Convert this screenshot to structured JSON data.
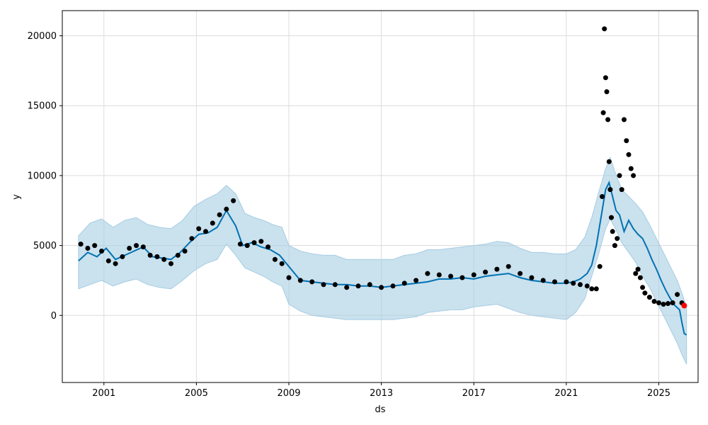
{
  "chart_data": {
    "type": "scatter",
    "title": "",
    "xlabel": "ds",
    "ylabel": "y",
    "xlim": [
      1999.2,
      2026.7
    ],
    "ylim": [
      -4800,
      21800
    ],
    "grid": true,
    "x_ticks": [
      "2001",
      "2005",
      "2009",
      "2013",
      "2017",
      "2021",
      "2025"
    ],
    "y_ticks": [
      "0",
      "5000",
      "10000",
      "15000",
      "20000"
    ],
    "colors": {
      "observed": "#000000",
      "forecast": "#0072b2",
      "interval": "#a6cde3",
      "highlight": "#ff0000",
      "grid": "#dcdcdc"
    },
    "series": [
      {
        "role": "observed",
        "x": [
          2000.0,
          2000.3,
          2000.6,
          2000.9,
          2001.2,
          2001.5,
          2001.8,
          2002.1,
          2002.4,
          2002.7,
          2003.0,
          2003.3,
          2003.6,
          2003.9,
          2004.2,
          2004.5,
          2004.8,
          2005.1,
          2005.4,
          2005.7,
          2006.0,
          2006.3,
          2006.6,
          2006.9,
          2007.2,
          2007.5,
          2007.8,
          2008.1,
          2008.4,
          2008.7,
          2009.0,
          2009.5,
          2010.0,
          2010.5,
          2011.0,
          2011.5,
          2012.0,
          2012.5,
          2013.0,
          2013.5,
          2014.0,
          2014.5,
          2015.0,
          2015.5,
          2016.0,
          2016.5,
          2017.0,
          2017.5,
          2018.0,
          2018.5,
          2019.0,
          2019.5,
          2020.0,
          2020.5,
          2021.0,
          2021.3,
          2021.6,
          2021.9,
          2022.1,
          2022.3,
          2022.45,
          2022.55,
          2022.6,
          2022.65,
          2022.7,
          2022.75,
          2022.8,
          2022.85,
          2022.9,
          2022.95,
          2023.0,
          2023.1,
          2023.2,
          2023.3,
          2023.4,
          2023.5,
          2023.6,
          2023.7,
          2023.8,
          2023.9,
          2024.0,
          2024.1,
          2024.2,
          2024.3,
          2024.4,
          2024.6,
          2024.8,
          2025.0,
          2025.2,
          2025.4,
          2025.6,
          2025.8,
          2026.0
        ],
        "values": [
          5100,
          4800,
          5000,
          4600,
          3900,
          3700,
          4200,
          4800,
          5000,
          4900,
          4300,
          4200,
          4000,
          3700,
          4300,
          4600,
          5500,
          6200,
          6000,
          6600,
          7200,
          7600,
          8200,
          5100,
          5000,
          5200,
          5300,
          4900,
          4000,
          3700,
          2700,
          2500,
          2400,
          2200,
          2200,
          2000,
          2100,
          2200,
          2000,
          2100,
          2300,
          2500,
          3000,
          2900,
          2800,
          2700,
          2900,
          3100,
          3300,
          3500,
          3000,
          2700,
          2500,
          2400,
          2400,
          2300,
          2200,
          2100,
          1900,
          1900,
          3500,
          8500,
          14500,
          20500,
          17000,
          16000,
          14000,
          11000,
          9000,
          7000,
          6000,
          5000,
          5500,
          10000,
          9000,
          14000,
          12500,
          11500,
          10500,
          10000,
          3000,
          3300,
          2700,
          2000,
          1600,
          1300,
          1000,
          900,
          800,
          850,
          900,
          1500,
          900
        ]
      },
      {
        "role": "forecast",
        "x": [
          1999.9,
          2000.3,
          2000.7,
          2001.1,
          2001.5,
          2001.9,
          2002.3,
          2002.7,
          2003.1,
          2003.5,
          2003.9,
          2004.3,
          2004.7,
          2005.1,
          2005.5,
          2005.9,
          2006.3,
          2006.7,
          2007.0,
          2007.4,
          2007.8,
          2008.2,
          2008.6,
          2009.0,
          2009.5,
          2010.0,
          2010.5,
          2011.0,
          2011.5,
          2012.0,
          2012.5,
          2013.0,
          2013.5,
          2014.0,
          2014.5,
          2015.0,
          2015.5,
          2016.0,
          2016.5,
          2017.0,
          2017.5,
          2018.0,
          2018.5,
          2019.0,
          2019.5,
          2020.0,
          2020.5,
          2021.0,
          2021.3,
          2021.6,
          2021.9,
          2022.1,
          2022.3,
          2022.5,
          2022.7,
          2022.85,
          2023.0,
          2023.15,
          2023.3,
          2023.5,
          2023.7,
          2023.9,
          2024.1,
          2024.3,
          2024.5,
          2024.7,
          2024.9,
          2025.1,
          2025.3,
          2025.5,
          2025.7,
          2025.9,
          2026.0,
          2026.1,
          2026.2
        ],
        "values": [
          3900,
          4500,
          4200,
          4800,
          4000,
          4300,
          4600,
          4900,
          4200,
          4100,
          4000,
          4500,
          5200,
          5800,
          5900,
          6300,
          7500,
          6400,
          5000,
          5200,
          4900,
          4700,
          4300,
          3500,
          2500,
          2400,
          2300,
          2200,
          2200,
          2100,
          2100,
          2000,
          2100,
          2200,
          2300,
          2400,
          2600,
          2600,
          2700,
          2600,
          2800,
          2900,
          3000,
          2700,
          2500,
          2400,
          2300,
          2300,
          2400,
          2600,
          3000,
          3600,
          5000,
          7000,
          9000,
          9500,
          8500,
          7500,
          7200,
          6000,
          6800,
          6200,
          5800,
          5500,
          4800,
          4000,
          3300,
          2500,
          1800,
          1200,
          700,
          400,
          -500,
          -1300,
          -1400
        ]
      }
    ],
    "uncertainty_band": {
      "x": [
        1999.9,
        2000.4,
        2000.9,
        2001.4,
        2001.9,
        2002.4,
        2002.9,
        2003.4,
        2003.9,
        2004.4,
        2004.9,
        2005.4,
        2005.9,
        2006.3,
        2006.7,
        2007.1,
        2007.5,
        2007.9,
        2008.3,
        2008.7,
        2009.0,
        2009.5,
        2010.0,
        2010.5,
        2011.0,
        2011.5,
        2012.0,
        2012.5,
        2013.0,
        2013.5,
        2014.0,
        2014.5,
        2015.0,
        2015.5,
        2016.0,
        2016.5,
        2017.0,
        2017.5,
        2018.0,
        2018.5,
        2019.0,
        2019.5,
        2020.0,
        2020.5,
        2021.0,
        2021.4,
        2021.8,
        2022.1,
        2022.4,
        2022.7,
        2022.9,
        2023.1,
        2023.4,
        2023.7,
        2024.0,
        2024.3,
        2024.6,
        2024.9,
        2025.2,
        2025.5,
        2025.8,
        2026.0,
        2026.2
      ],
      "upper": [
        5700,
        6600,
        6900,
        6300,
        6800,
        7000,
        6500,
        6300,
        6200,
        6800,
        7800,
        8300,
        8700,
        9300,
        8700,
        7300,
        7000,
        6800,
        6500,
        6300,
        5000,
        4600,
        4400,
        4300,
        4300,
        4000,
        4000,
        4000,
        4000,
        4000,
        4300,
        4400,
        4700,
        4700,
        4800,
        4900,
        5000,
        5100,
        5300,
        5200,
        4800,
        4500,
        4500,
        4400,
        4400,
        4700,
        5600,
        7000,
        8800,
        10500,
        11300,
        10300,
        9000,
        8500,
        8000,
        7400,
        6500,
        5500,
        4500,
        3500,
        2500,
        1600,
        600
      ],
      "lower": [
        1900,
        2200,
        2500,
        2100,
        2400,
        2600,
        2200,
        2000,
        1900,
        2500,
        3200,
        3700,
        4000,
        5100,
        4300,
        3400,
        3100,
        2800,
        2400,
        2100,
        800,
        300,
        0,
        -100,
        -200,
        -300,
        -300,
        -300,
        -300,
        -300,
        -200,
        -100,
        200,
        300,
        400,
        400,
        600,
        700,
        800,
        500,
        200,
        0,
        -100,
        -200,
        -300,
        200,
        1200,
        2800,
        4400,
        6200,
        6900,
        6300,
        5200,
        4500,
        3800,
        2800,
        2000,
        1000,
        0,
        -1000,
        -2000,
        -2800,
        -3500
      ]
    },
    "highlight_point": {
      "x": 2026.1,
      "y": 700
    }
  }
}
